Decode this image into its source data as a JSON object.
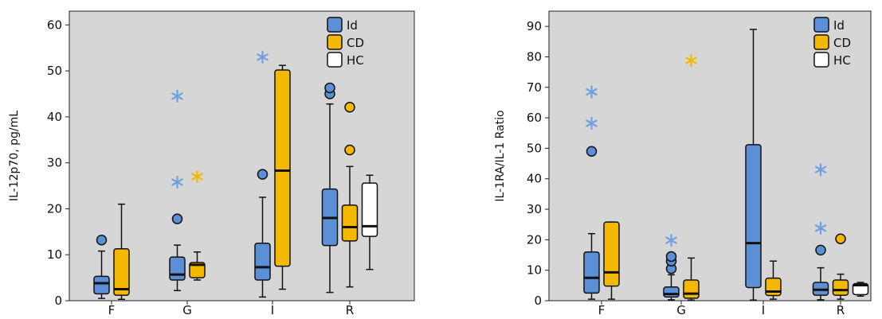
{
  "chart_data": [
    {
      "type": "boxplot",
      "ylabel": "IL-12p70, pg/mL",
      "ylim": [
        0,
        63
      ],
      "yticks": [
        0,
        10,
        20,
        30,
        40,
        50,
        60
      ],
      "categories": [
        "F",
        "G",
        "I",
        "R"
      ],
      "background": "#d6d6d6",
      "series": [
        {
          "name": "Id",
          "color": "#5b8fd6",
          "outlier_star_color": "#6fa0e0"
        },
        {
          "name": "CD",
          "color": "#f5b800",
          "outlier_star_color": "#f5b800"
        },
        {
          "name": "HC",
          "color": "#ffffff",
          "outlier_star_color": "#888888"
        }
      ],
      "legend": "top-right",
      "boxes": [
        {
          "category": "F",
          "series": "Id",
          "min": 0.5,
          "q1": 1.5,
          "median": 3.8,
          "q3": 5.3,
          "max": 10.8,
          "outliers": [
            {
              "v": 13.2,
              "m": "circle"
            }
          ]
        },
        {
          "category": "F",
          "series": "CD",
          "min": 0.3,
          "q1": 1.2,
          "median": 2.5,
          "q3": 11.3,
          "max": 21.0,
          "outliers": []
        },
        {
          "category": "G",
          "series": "Id",
          "min": 2.2,
          "q1": 4.5,
          "median": 5.7,
          "q3": 9.5,
          "max": 12.1,
          "outliers": [
            {
              "v": 17.8,
              "m": "circle"
            },
            {
              "v": 25.8,
              "m": "star"
            },
            {
              "v": 44.5,
              "m": "star"
            }
          ]
        },
        {
          "category": "G",
          "series": "CD",
          "min": 4.5,
          "q1": 5.0,
          "median": 7.8,
          "q3": 8.3,
          "max": 10.6,
          "outliers": [
            {
              "v": 27.0,
              "m": "star"
            }
          ]
        },
        {
          "category": "I",
          "series": "Id",
          "min": 0.8,
          "q1": 4.5,
          "median": 7.3,
          "q3": 12.5,
          "max": 22.5,
          "outliers": [
            {
              "v": 27.5,
              "m": "circle"
            },
            {
              "v": 53.0,
              "m": "star"
            }
          ]
        },
        {
          "category": "I",
          "series": "CD",
          "min": 2.5,
          "q1": 7.5,
          "median": 28.3,
          "q3": 50.2,
          "max": 51.2,
          "outliers": []
        },
        {
          "category": "R",
          "series": "Id",
          "min": 1.8,
          "q1": 12.0,
          "median": 18.0,
          "q3": 24.3,
          "max": 42.8,
          "outliers": [
            {
              "v": 45.0,
              "m": "circle"
            },
            {
              "v": 46.3,
              "m": "circle"
            }
          ]
        },
        {
          "category": "R",
          "series": "CD",
          "min": 3.0,
          "q1": 13.0,
          "median": 16.0,
          "q3": 20.8,
          "max": 29.2,
          "outliers": [
            {
              "v": 32.8,
              "m": "circle"
            },
            {
              "v": 42.1,
              "m": "circle"
            }
          ]
        },
        {
          "category": "R",
          "series": "HC",
          "min": 6.8,
          "q1": 14.0,
          "median": 16.2,
          "q3": 25.6,
          "max": 27.3,
          "outliers": []
        }
      ]
    },
    {
      "type": "boxplot",
      "ylabel": "IL-1RA/IL-1 Ratio",
      "ylim": [
        0,
        95
      ],
      "yticks": [
        0,
        10,
        20,
        30,
        40,
        50,
        60,
        70,
        80,
        90
      ],
      "categories": [
        "F",
        "G",
        "I",
        "R"
      ],
      "background": "#d6d6d6",
      "series": [
        {
          "name": "Id",
          "color": "#5b8fd6",
          "outlier_star_color": "#6fa0e0"
        },
        {
          "name": "CD",
          "color": "#f5b800",
          "outlier_star_color": "#f5b800"
        },
        {
          "name": "HC",
          "color": "#ffffff",
          "outlier_star_color": "#888888"
        }
      ],
      "legend": "top-right",
      "boxes": [
        {
          "category": "F",
          "series": "Id",
          "min": 0.5,
          "q1": 2.5,
          "median": 7.5,
          "q3": 16.0,
          "max": 22.0,
          "outliers": [
            {
              "v": 49.0,
              "m": "circle"
            },
            {
              "v": 58.2,
              "m": "star"
            },
            {
              "v": 68.5,
              "m": "star"
            }
          ]
        },
        {
          "category": "F",
          "series": "CD",
          "min": 0.5,
          "q1": 4.8,
          "median": 9.3,
          "q3": 25.8,
          "max": 25.8,
          "outliers": []
        },
        {
          "category": "G",
          "series": "Id",
          "min": 0.3,
          "q1": 1.2,
          "median": 2.2,
          "q3": 4.5,
          "max": 8.5,
          "outliers": [
            {
              "v": 10.5,
              "m": "circle"
            },
            {
              "v": 13.0,
              "m": "circle"
            },
            {
              "v": 14.5,
              "m": "circle"
            },
            {
              "v": 19.8,
              "m": "star"
            }
          ]
        },
        {
          "category": "G",
          "series": "CD",
          "min": 0.2,
          "q1": 0.8,
          "median": 2.3,
          "q3": 6.8,
          "max": 14.0,
          "outliers": [
            {
              "v": 78.8,
              "m": "star"
            }
          ]
        },
        {
          "category": "I",
          "series": "Id",
          "min": 0.2,
          "q1": 4.3,
          "median": 18.9,
          "q3": 51.2,
          "max": 89.0,
          "outliers": []
        },
        {
          "category": "I",
          "series": "CD",
          "min": 0.5,
          "q1": 1.7,
          "median": 3.0,
          "q3": 7.4,
          "max": 13.0,
          "outliers": []
        },
        {
          "category": "R",
          "series": "Id",
          "min": 0.3,
          "q1": 1.8,
          "median": 3.6,
          "q3": 6.0,
          "max": 10.8,
          "outliers": [
            {
              "v": 16.6,
              "m": "circle"
            },
            {
              "v": 23.8,
              "m": "star"
            },
            {
              "v": 43.0,
              "m": "star"
            }
          ]
        },
        {
          "category": "R",
          "series": "CD",
          "min": 0.5,
          "q1": 1.8,
          "median": 3.5,
          "q3": 6.8,
          "max": 8.7,
          "outliers": [
            {
              "v": 20.3,
              "m": "circle"
            }
          ]
        },
        {
          "category": "R",
          "series": "HC",
          "min": 1.5,
          "q1": 2.0,
          "median": 5.1,
          "q3": 5.6,
          "max": 6.0,
          "outliers": []
        }
      ]
    }
  ]
}
